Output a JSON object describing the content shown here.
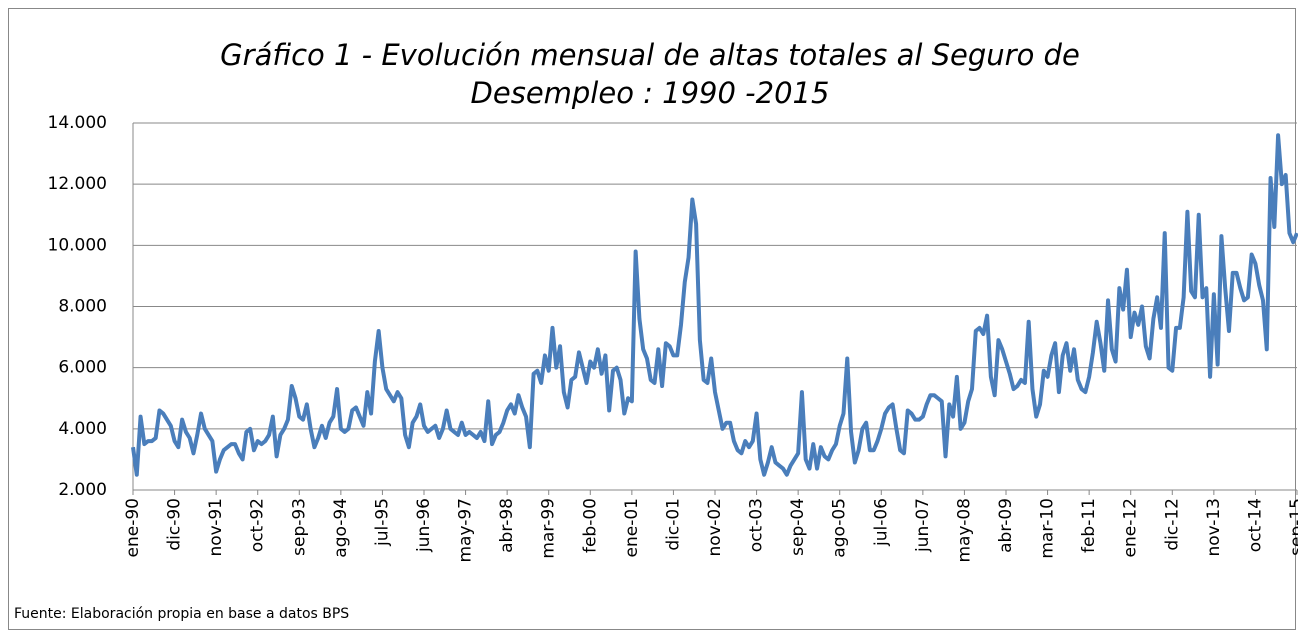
{
  "chart_data": {
    "type": "line",
    "title": "Gráfico 1 - Evolución mensual de altas totales al Seguro de Desempleo : 1990 -2015",
    "source": "Fuente: Elaboración propia en base a datos BPS",
    "categories": [
      "ene-90",
      null,
      null,
      null,
      null,
      null,
      null,
      null,
      null,
      null,
      null,
      "dic-90",
      null,
      null,
      null,
      null,
      null,
      null,
      null,
      null,
      null,
      null,
      "nov-91",
      null,
      null,
      null,
      null,
      null,
      null,
      null,
      null,
      null,
      null,
      "oct-92",
      null,
      null,
      null,
      null,
      null,
      null,
      null,
      null,
      null,
      null,
      "sep-93",
      null,
      null,
      null,
      null,
      null,
      null,
      null,
      null,
      null,
      null,
      "ago-94",
      null,
      null,
      null,
      null,
      null,
      null,
      null,
      null,
      null,
      null,
      "jul-95",
      null,
      null,
      null,
      null,
      null,
      null,
      null,
      null,
      null,
      null,
      "jun-96",
      null,
      null,
      null,
      null,
      null,
      null,
      null,
      null,
      null,
      null,
      "may-97",
      null,
      null,
      null,
      null,
      null,
      null,
      null,
      null,
      null,
      null,
      "abr-98",
      null,
      null,
      null,
      null,
      null,
      null,
      null,
      null,
      null,
      null,
      "mar-99",
      null,
      null,
      null,
      null,
      null,
      null,
      null,
      null,
      null,
      null,
      "feb-00",
      null,
      null,
      null,
      null,
      null,
      null,
      null,
      null,
      null,
      null,
      "ene-01",
      null,
      null,
      null,
      null,
      null,
      null,
      null,
      null,
      null,
      null,
      "dic-01",
      null,
      null,
      null,
      null,
      null,
      null,
      null,
      null,
      null,
      null,
      "nov-02",
      null,
      null,
      null,
      null,
      null,
      null,
      null,
      null,
      null,
      null,
      "oct-03",
      null,
      null,
      null,
      null,
      null,
      null,
      null,
      null,
      null,
      null,
      "sep-04",
      null,
      null,
      null,
      null,
      null,
      null,
      null,
      null,
      null,
      null,
      "ago-05",
      null,
      null,
      null,
      null,
      null,
      null,
      null,
      null,
      null,
      null,
      "jul-06",
      null,
      null,
      null,
      null,
      null,
      null,
      null,
      null,
      null,
      null,
      "jun-07",
      null,
      null,
      null,
      null,
      null,
      null,
      null,
      null,
      null,
      null,
      "may-08",
      null,
      null,
      null,
      null,
      null,
      null,
      null,
      null,
      null,
      null,
      "abr-09",
      null,
      null,
      null,
      null,
      null,
      null,
      null,
      null,
      null,
      null,
      "mar-10",
      null,
      null,
      null,
      null,
      null,
      null,
      null,
      null,
      null,
      null,
      "feb-11",
      null,
      null,
      null,
      null,
      null,
      null,
      null,
      null,
      null,
      null,
      "ene-12",
      null,
      null,
      null,
      null,
      null,
      null,
      null,
      null,
      null,
      null,
      "dic-12",
      null,
      null,
      null,
      null,
      null,
      null,
      null,
      null,
      null,
      null,
      "nov-13",
      null,
      null,
      null,
      null,
      null,
      null,
      null,
      null,
      null,
      null,
      "oct-14",
      null,
      null,
      null,
      null,
      null,
      null,
      null,
      null,
      null,
      null,
      "sep-15"
    ],
    "values": [
      3400,
      2500,
      4400,
      3500,
      3600,
      3600,
      3700,
      4600,
      4500,
      4300,
      4100,
      3600,
      3400,
      4300,
      3900,
      3700,
      3200,
      3800,
      4500,
      4000,
      3800,
      3600,
      2600,
      3000,
      3300,
      3400,
      3500,
      3500,
      3200,
      3000,
      3900,
      4000,
      3300,
      3600,
      3500,
      3600,
      3800,
      4400,
      3100,
      3800,
      4000,
      4300,
      5400,
      5000,
      4400,
      4300,
      4800,
      4000,
      3400,
      3700,
      4100,
      3700,
      4200,
      4400,
      5300,
      4000,
      3900,
      4000,
      4600,
      4700,
      4400,
      4100,
      5200,
      4500,
      6200,
      7200,
      6000,
      5300,
      5100,
      4900,
      5200,
      5000,
      3800,
      3400,
      4200,
      4400,
      4800,
      4100,
      3900,
      4000,
      4100,
      3700,
      4000,
      4600,
      4000,
      3900,
      3800,
      4200,
      3800,
      3900,
      3800,
      3700,
      3900,
      3600,
      4900,
      3500,
      3800,
      3900,
      4200,
      4600,
      4800,
      4500,
      5100,
      4700,
      4400,
      3400,
      5800,
      5900,
      5500,
      6400,
      5900,
      7300,
      6000,
      6700,
      5200,
      4700,
      5600,
      5700,
      6500,
      6000,
      5500,
      6200,
      6000,
      6600,
      5800,
      6400,
      4600,
      5900,
      6000,
      5600,
      4500,
      5000,
      4900,
      9800,
      7600,
      6600,
      6300,
      5600,
      5500,
      6600,
      5400,
      6800,
      6700,
      6400,
      6400,
      7400,
      8800,
      9600,
      11500,
      10700,
      6900,
      5600,
      5500,
      6300,
      5200,
      4600,
      4000,
      4200,
      4200,
      3600,
      3300,
      3200,
      3600,
      3400,
      3600,
      4500,
      3000,
      2500,
      2900,
      3400,
      2900,
      2800,
      2700,
      2500,
      2800,
      3000,
      3200,
      5200,
      3000,
      2700,
      3500,
      2700,
      3400,
      3100,
      3000,
      3300,
      3500,
      4100,
      4500,
      6300,
      3900,
      2900,
      3300,
      4000,
      4200,
      3300,
      3300,
      3600,
      4000,
      4500,
      4700,
      4800,
      4000,
      3300,
      3200,
      4600,
      4500,
      4300,
      4300,
      4400,
      4800,
      5100,
      5100,
      5000,
      4900,
      3100,
      4800,
      4400,
      5700,
      4000,
      4200,
      4900,
      5300,
      7200,
      7300,
      7100,
      7700,
      5700,
      5100,
      6900,
      6600,
      6200,
      5800,
      5300,
      5400,
      5600,
      5500,
      7500,
      5300,
      4400,
      4800,
      5900,
      5700,
      6400,
      6800,
      5200,
      6400,
      6800,
      5900,
      6600,
      5600,
      5300,
      5200,
      5700,
      6500,
      7500,
      6800,
      5900,
      8200,
      6600,
      6200,
      8600,
      7900,
      9200,
      7000,
      7800,
      7400,
      8000,
      6700,
      6300,
      7600,
      8300,
      7300,
      10400,
      6000,
      5900,
      7300,
      7300,
      8300,
      11100,
      8500,
      8300,
      11000,
      8300,
      8600,
      5700,
      8400,
      6100,
      10300,
      8600,
      7200,
      9100,
      9100,
      8600,
      8200,
      8300,
      9700,
      9400,
      8700,
      8200,
      6600,
      12200,
      10600,
      13600,
      12000,
      12300,
      10400,
      10100,
      10400
    ],
    "color": "#4a7ebb",
    "ylim": [
      2000,
      14000
    ],
    "yticks": [
      {
        "value": 2000,
        "label": "2.000"
      },
      {
        "value": 4000,
        "label": "4.000"
      },
      {
        "value": 6000,
        "label": "6.000"
      },
      {
        "value": 8000,
        "label": "8.000"
      },
      {
        "value": 10000,
        "label": "10.000"
      },
      {
        "value": 12000,
        "label": "12.000"
      },
      {
        "value": 14000,
        "label": "14.000"
      }
    ],
    "grid": true
  }
}
